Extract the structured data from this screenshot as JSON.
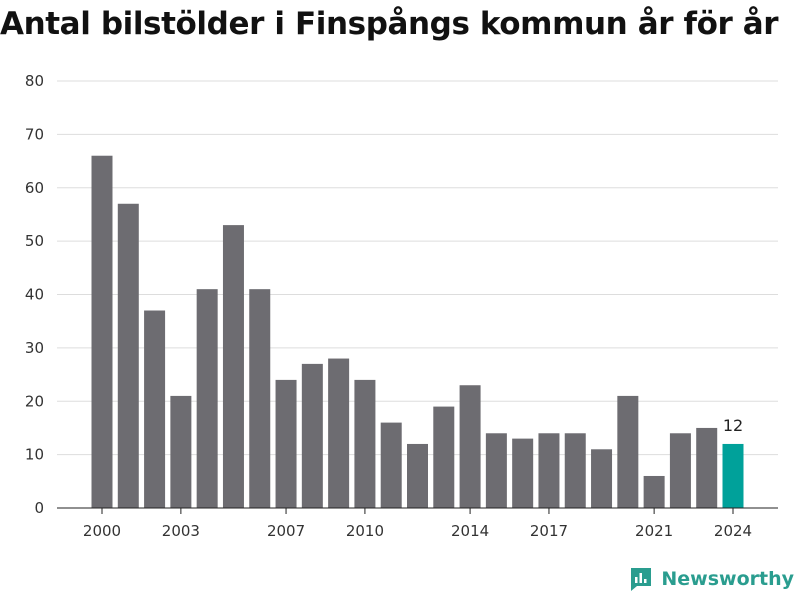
{
  "chart_data": {
    "type": "bar",
    "title": "Antal bilstölder i Finspångs kommun år för år",
    "x": [
      2000,
      2001,
      2002,
      2003,
      2004,
      2005,
      2006,
      2007,
      2008,
      2009,
      2010,
      2011,
      2012,
      2013,
      2014,
      2015,
      2016,
      2017,
      2018,
      2019,
      2020,
      2021,
      2022,
      2023,
      2024
    ],
    "values": [
      66,
      57,
      37,
      21,
      41,
      53,
      41,
      24,
      27,
      28,
      24,
      16,
      12,
      19,
      23,
      14,
      13,
      14,
      14,
      11,
      21,
      6,
      14,
      15,
      12
    ],
    "x_tick_labels": [
      "2000",
      "2003",
      "2007",
      "2010",
      "2014",
      "2017",
      "2021",
      "2024"
    ],
    "y_ticks": [
      0,
      10,
      20,
      30,
      40,
      50,
      60,
      70,
      80
    ],
    "ylim": [
      0,
      80
    ],
    "grid": true,
    "data_labels": [
      {
        "x": 2024,
        "text": "12"
      }
    ],
    "colors": {
      "bar": "#6d6c71",
      "highlight": "#00a19a",
      "grid": "#dddddd"
    }
  },
  "brand": {
    "name": "Newsworthy",
    "icon": "newsworthy-logo-icon",
    "color": "#2a9d8f"
  }
}
